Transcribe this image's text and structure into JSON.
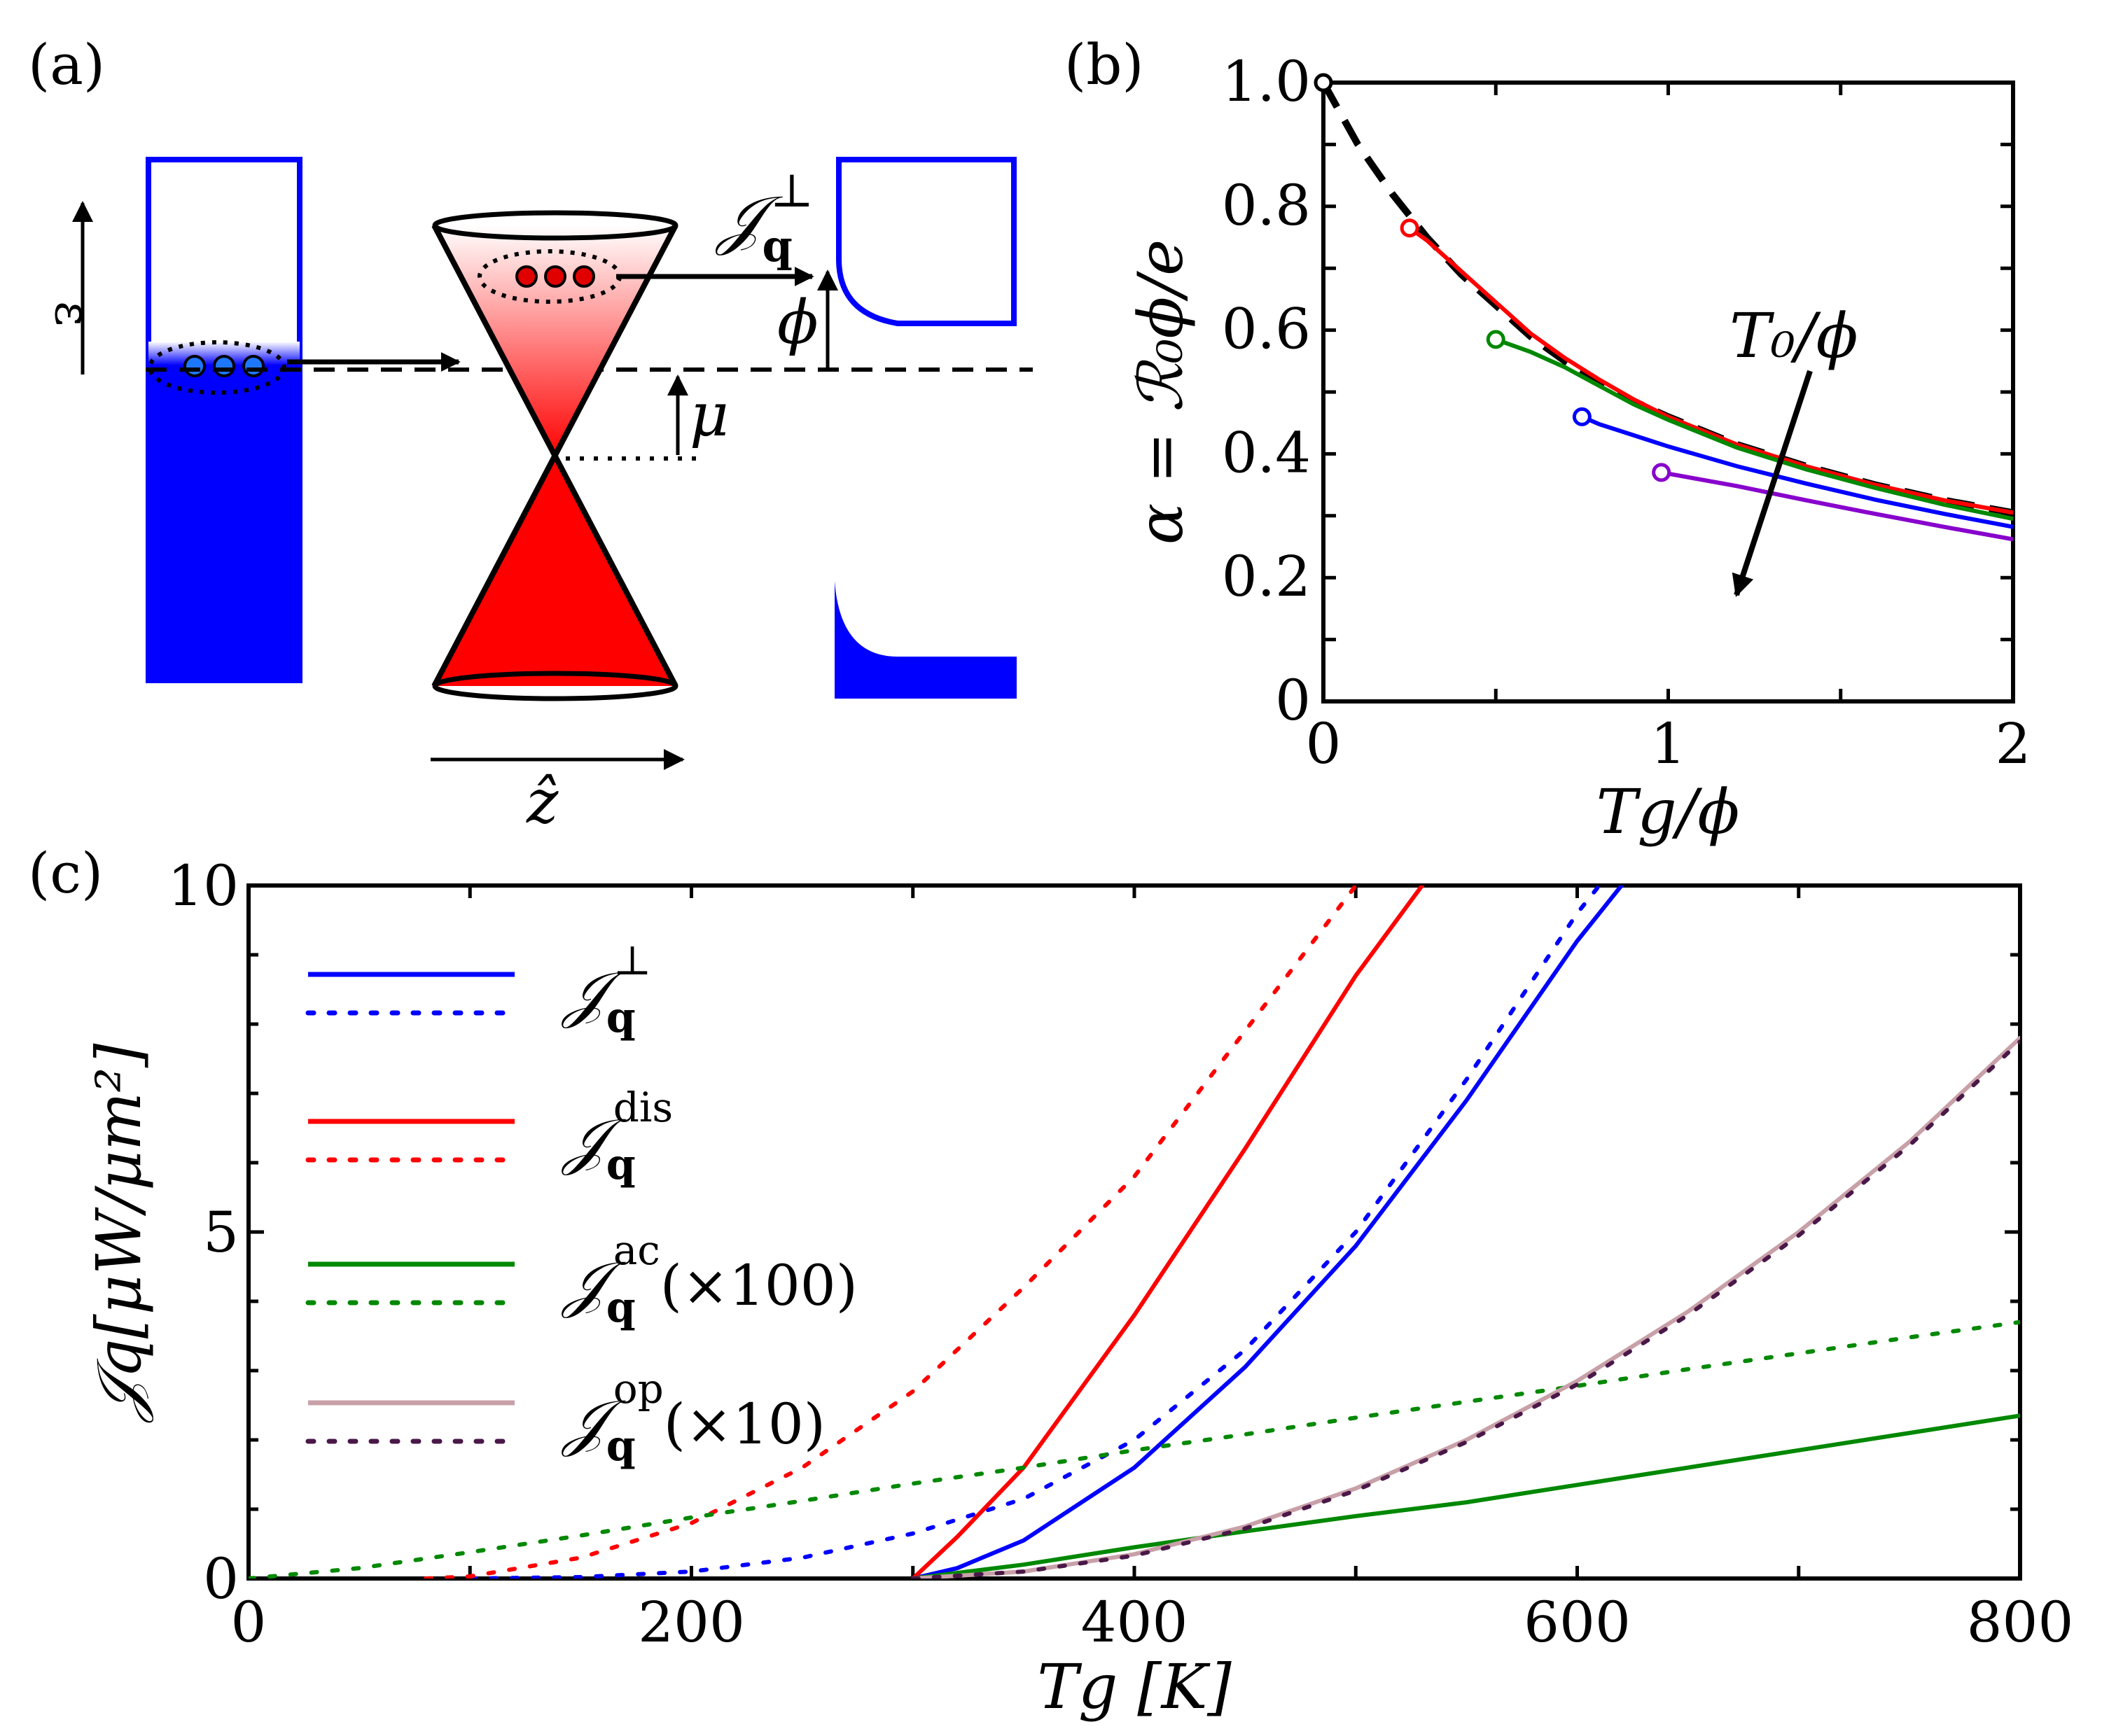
{
  "panel_a": {
    "label": "(a)",
    "energy_label": "ε",
    "z_label": "ẑ",
    "current_symbol": "𝒥",
    "current_sub": "q",
    "current_sup": "⊥",
    "phi_label": "ϕ",
    "mu_label": "μ",
    "colors": {
      "metal": "#0000ff",
      "graphene": "#ff0000",
      "electron_blue": "#1e78ff",
      "electron_red": "#e00000"
    }
  },
  "panel_b": {
    "label": "(b)",
    "ylabel": "α = ℛ₀ϕ/e",
    "xlabel": "Tg/ϕ",
    "arrow_label": "T₀/ϕ",
    "xticks": [
      "0",
      "1",
      "2"
    ],
    "yticks": [
      "0",
      "0.2",
      "0.4",
      "0.6",
      "0.8",
      "1.0"
    ]
  },
  "panel_c": {
    "label": "(c)",
    "ylabel": "𝒥q[μW/μm²]",
    "xlabel": "Tg [K]",
    "xticks": [
      "0",
      "200",
      "400",
      "600",
      "800"
    ],
    "yticks": [
      "0",
      "5",
      "10"
    ],
    "legend": [
      {
        "sym": "𝒥",
        "sub": "q",
        "sup": "⊥",
        "suffix": ""
      },
      {
        "sym": "𝒥",
        "sub": "q",
        "sup": "dis",
        "suffix": ""
      },
      {
        "sym": "𝒥",
        "sub": "q",
        "sup": "ac",
        "suffix": "(×100)"
      },
      {
        "sym": "𝒥",
        "sub": "q",
        "sup": "op",
        "suffix": "(×10)"
      }
    ]
  },
  "chart_data": [
    {
      "type": "line",
      "panel": "b",
      "xlim": [
        0,
        2
      ],
      "ylim": [
        0,
        1.0
      ],
      "series": [
        {
          "style": "dashed",
          "color": "#000000",
          "x": [
            0,
            0.1,
            0.2,
            0.3,
            0.4,
            0.5,
            0.6,
            0.7,
            0.8,
            0.9,
            1.0,
            1.2,
            1.4,
            1.6,
            1.8,
            2.0
          ],
          "y": [
            1.0,
            0.9,
            0.82,
            0.75,
            0.69,
            0.64,
            0.59,
            0.55,
            0.515,
            0.485,
            0.46,
            0.415,
            0.38,
            0.35,
            0.325,
            0.305
          ]
        },
        {
          "style": "solid",
          "color": "#ff0000",
          "x": [
            0.25,
            0.3,
            0.4,
            0.5,
            0.6,
            0.7,
            0.8,
            0.9,
            1.0,
            1.2,
            1.4,
            1.6,
            1.8,
            2.0
          ],
          "y": [
            0.765,
            0.745,
            0.695,
            0.645,
            0.595,
            0.555,
            0.52,
            0.488,
            0.46,
            0.415,
            0.38,
            0.35,
            0.325,
            0.305
          ]
        },
        {
          "style": "solid",
          "color": "#008800",
          "x": [
            0.5,
            0.6,
            0.7,
            0.8,
            0.9,
            1.0,
            1.2,
            1.4,
            1.6,
            1.8,
            2.0
          ],
          "y": [
            0.585,
            0.565,
            0.54,
            0.51,
            0.48,
            0.455,
            0.41,
            0.375,
            0.345,
            0.318,
            0.295
          ]
        },
        {
          "style": "solid",
          "color": "#0000ff",
          "x": [
            0.75,
            0.8,
            0.9,
            1.0,
            1.2,
            1.4,
            1.6,
            1.8,
            2.0
          ],
          "y": [
            0.46,
            0.448,
            0.43,
            0.412,
            0.38,
            0.352,
            0.326,
            0.303,
            0.282
          ]
        },
        {
          "style": "solid",
          "color": "#8800cc",
          "x": [
            0.98,
            1.0,
            1.2,
            1.4,
            1.6,
            1.8,
            2.0
          ],
          "y": [
            0.37,
            0.368,
            0.348,
            0.325,
            0.303,
            0.282,
            0.262
          ]
        }
      ]
    },
    {
      "type": "line",
      "panel": "c",
      "xlim": [
        0,
        800
      ],
      "ylim": [
        0,
        10
      ],
      "series": [
        {
          "style": "solid",
          "color": "#0000ff",
          "x": [
            300,
            320,
            350,
            400,
            450,
            500,
            550,
            600,
            620
          ],
          "y": [
            0,
            0.15,
            0.55,
            1.6,
            3.05,
            4.8,
            6.9,
            9.2,
            10
          ]
        },
        {
          "style": "dotted",
          "color": "#0000ff",
          "x": [
            100,
            150,
            200,
            250,
            300,
            350,
            400,
            450,
            500,
            550,
            600,
            610
          ],
          "y": [
            0,
            0.02,
            0.1,
            0.3,
            0.65,
            1.15,
            2.0,
            3.3,
            5.0,
            7.2,
            9.6,
            10
          ]
        },
        {
          "style": "solid",
          "color": "#ff0000",
          "x": [
            300,
            320,
            350,
            400,
            450,
            500,
            530
          ],
          "y": [
            0,
            0.6,
            1.6,
            3.8,
            6.2,
            8.7,
            10
          ]
        },
        {
          "style": "dotted",
          "color": "#ff0000",
          "x": [
            80,
            100,
            150,
            200,
            250,
            300,
            350,
            400,
            450,
            500
          ],
          "y": [
            0,
            0.03,
            0.3,
            0.8,
            1.6,
            2.7,
            4.2,
            5.8,
            7.9,
            10
          ]
        },
        {
          "style": "solid",
          "color": "#008800",
          "x": [
            300,
            350,
            400,
            450,
            500,
            550,
            600,
            650,
            700,
            750,
            800
          ],
          "y": [
            0,
            0.2,
            0.45,
            0.68,
            0.9,
            1.1,
            1.35,
            1.6,
            1.85,
            2.1,
            2.35
          ]
        },
        {
          "style": "dotted",
          "color": "#008800",
          "x": [
            0,
            50,
            100,
            150,
            200,
            250,
            300,
            350,
            400,
            450,
            500,
            550,
            600,
            650,
            700,
            750,
            800
          ],
          "y": [
            0,
            0.15,
            0.38,
            0.62,
            0.88,
            1.12,
            1.37,
            1.6,
            1.85,
            2.08,
            2.32,
            2.55,
            2.78,
            3.02,
            3.25,
            3.48,
            3.7
          ]
        },
        {
          "style": "solid",
          "color": "#c8a0a8",
          "x": [
            300,
            350,
            400,
            450,
            500,
            550,
            600,
            650,
            700,
            750,
            800
          ],
          "y": [
            0,
            0.1,
            0.35,
            0.75,
            1.3,
            2.0,
            2.85,
            3.85,
            5.0,
            6.3,
            7.8
          ]
        },
        {
          "style": "dotted",
          "color": "#4a1848",
          "x": [
            300,
            350,
            400,
            450,
            500,
            550,
            600,
            650,
            700,
            750,
            800
          ],
          "y": [
            0,
            0.1,
            0.33,
            0.72,
            1.27,
            1.97,
            2.8,
            3.8,
            4.95,
            6.25,
            7.75
          ]
        }
      ]
    }
  ]
}
